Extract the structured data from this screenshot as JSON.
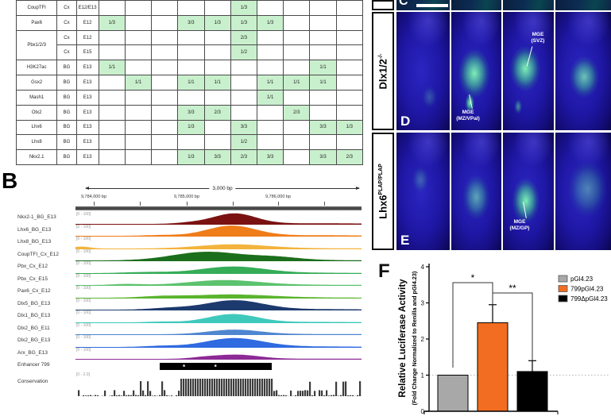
{
  "labels": {
    "b": "B",
    "f": "F"
  },
  "table": {
    "highlight_color": "#c9f0cd",
    "num_data_cols": 10,
    "rows": [
      {
        "gene": "CoupTFI",
        "rowspan": 1,
        "region": "Cx",
        "age": "E12/E13",
        "cells": {
          "6": "1/3"
        }
      },
      {
        "gene": "Pax6",
        "rowspan": 1,
        "region": "Cx",
        "age": "E12",
        "cells": {
          "1": "1/3",
          "4": "3/3",
          "5": "1/3",
          "6": "1/3",
          "7": "1/3"
        }
      },
      {
        "gene": "Pbx1/2/3",
        "rowspan": 2,
        "region": "Cx",
        "age": "E12",
        "cells": {
          "6": "2/3"
        }
      },
      {
        "gene": null,
        "rowspan": 1,
        "region": "Cx",
        "age": "E15",
        "cells": {
          "6": "1/2"
        }
      },
      {
        "gene": "H3K27ac",
        "rowspan": 1,
        "region": "BG",
        "age": "E13",
        "cells": {
          "1": "1/1",
          "9": "1/1"
        }
      },
      {
        "gene": "Gsx2",
        "rowspan": 1,
        "region": "BG",
        "age": "E13",
        "cells": {
          "2": "1/1",
          "4": "1/1",
          "5": "1/1",
          "7": "1/1",
          "8": "1/1",
          "9": "1/1"
        }
      },
      {
        "gene": "Mash1",
        "rowspan": 1,
        "region": "BG",
        "age": "E13",
        "cells": {
          "7": "1/1"
        }
      },
      {
        "gene": "Otx2",
        "rowspan": 1,
        "region": "BG",
        "age": "E13",
        "cells": {
          "4": "3/3",
          "5": "2/3",
          "8": "2/3"
        }
      },
      {
        "gene": "Lhx6",
        "rowspan": 1,
        "region": "BG",
        "age": "E13",
        "cells": {
          "4": "1/3",
          "6": "3/3",
          "9": "3/3",
          "10": "1/3"
        }
      },
      {
        "gene": "Lhx8",
        "rowspan": 1,
        "region": "BG",
        "age": "E13",
        "cells": {
          "6": "1/2"
        }
      },
      {
        "gene": "Nkx2.1",
        "rowspan": 1,
        "region": "BG",
        "age": "E13",
        "cells": {
          "4": "1/3",
          "5": "3/3",
          "6": "2/3",
          "7": "3/3",
          "9": "3/3",
          "10": "2/3"
        }
      }
    ]
  },
  "panel_b": {
    "ruler": {
      "span_label": "3,000 bp",
      "coords": [
        "9,784,000 bp",
        "9,785,000 bp",
        "9,786,000 bp"
      ]
    },
    "tracks": [
      {
        "name": "Nkx2-1_BG_E13",
        "scale": "[0 - 100]",
        "color": "#7a1212",
        "peak": {
          "c": 0.555,
          "w": 0.075,
          "h": 0.95
        },
        "peak2": {
          "c": 0.4,
          "w": 0.05,
          "h": 0.1
        }
      },
      {
        "name": "Lhx6_BG_E13",
        "scale": "[0 - 100]",
        "color": "#ef7d1a",
        "peak": {
          "c": 0.545,
          "w": 0.085,
          "h": 0.92
        },
        "peak2": {
          "c": 0.3,
          "w": 0.06,
          "h": 0.07
        }
      },
      {
        "name": "Lhx8_BG_E13",
        "scale": "[0 - 100]",
        "color": "#f3b33c",
        "peak": {
          "c": 0.55,
          "w": 0.12,
          "h": 0.38
        },
        "peak2": {
          "c": 0.02,
          "w": 0.03,
          "h": 0.18
        }
      },
      {
        "name": "CoupTFI_Cx_E12",
        "scale": "[0 - 100]",
        "color": "#1b6e1b",
        "peak": {
          "c": 0.46,
          "w": 0.12,
          "h": 0.78
        },
        "peak2": {
          "c": 0.7,
          "w": 0.08,
          "h": 0.25
        }
      },
      {
        "name": "Pbx_Cx_E12",
        "scale": "[0 - 100]",
        "color": "#35ad57",
        "peak": {
          "c": 0.55,
          "w": 0.11,
          "h": 0.6
        },
        "peak2": {
          "c": 0.25,
          "w": 0.08,
          "h": 0.1
        }
      },
      {
        "name": "Pbx_Cx_E15",
        "scale": "[0 - 100]",
        "color": "#5cc26e",
        "peak": {
          "c": 0.52,
          "w": 0.12,
          "h": 0.45
        },
        "peak2": {
          "c": 0.18,
          "w": 0.05,
          "h": 0.1
        }
      },
      {
        "name": "Pax6_Cx_E12",
        "scale": "[0 - 100]",
        "color": "#5ab42d",
        "peak": {
          "c": 0.54,
          "w": 0.14,
          "h": 0.3
        },
        "peak2": {
          "c": 0.3,
          "w": 0.07,
          "h": 0.12
        }
      },
      {
        "name": "Dlx5_BG_E13",
        "scale": "[0 - 100]",
        "color": "#1d3a6e",
        "peak": {
          "c": 0.555,
          "w": 0.1,
          "h": 0.85
        },
        "peak2": {
          "c": 0.33,
          "w": 0.07,
          "h": 0.15
        }
      },
      {
        "name": "Dlx1_BG_E13",
        "scale": "[0 - 100]",
        "color": "#3fc9bc",
        "peak": {
          "c": 0.55,
          "w": 0.085,
          "h": 0.75
        },
        "peak2": {
          "c": 0.3,
          "w": 0.05,
          "h": 0.07
        }
      },
      {
        "name": "Dlx2_BG_E11",
        "scale": "[0 - 100]",
        "color": "#4f86d0",
        "peak": {
          "c": 0.555,
          "w": 0.09,
          "h": 0.42
        }
      },
      {
        "name": "Dlx2_BG_E13",
        "scale": "[0 - 100]",
        "color": "#2f6ae0",
        "peak": {
          "c": 0.555,
          "w": 0.1,
          "h": 0.8
        },
        "peak2": {
          "c": 0.3,
          "w": 0.06,
          "h": 0.1
        }
      },
      {
        "name": "Arx_BG_E13",
        "scale": "[0 - 100]",
        "color": "#8d2a96",
        "peak": {
          "c": 0.565,
          "w": 0.075,
          "h": 0.38
        },
        "peak2": {
          "c": 0.45,
          "w": 0.05,
          "h": 0.12
        }
      }
    ],
    "enhancer": {
      "name": "Enhancer 799",
      "bar_start": 0.295,
      "bar_end": 0.685,
      "asterisk": "*",
      "ast_pos": [
        0.375,
        0.485
      ]
    },
    "conservation": {
      "name": "Conservation",
      "scale": "[0 - 2.0]",
      "color": "#3d3d3d",
      "block_start": 0.36,
      "block_end": 0.685
    }
  },
  "panel_c": {
    "letter": "C"
  },
  "panel_d": {
    "letter": "D",
    "row_label": "Dlx1/2",
    "row_sup": "-/-",
    "ann_svz": [
      "MGE",
      "(SVZ)"
    ],
    "ann_mz": [
      "MGE",
      "(MZ/VPal)"
    ]
  },
  "panel_e": {
    "letter": "E",
    "row_label": "Lhx6",
    "row_sup": "PLAP/PLAP",
    "ann": [
      "MGE",
      "(MZ/GP)"
    ]
  },
  "chart_data": {
    "type": "bar",
    "ylabel": "Relative Luciferase Activity",
    "ylabel_sub": "(Fold Change Normalized to Renilla and pGl4.23)",
    "categories": [
      "pGl4.23",
      "799pGl4.23",
      "799ΔpGl4.23"
    ],
    "values": [
      1.0,
      2.45,
      1.1
    ],
    "errors": [
      0,
      0.5,
      0.3
    ],
    "colors": [
      "#a8a8a8",
      "#f26d21",
      "#000000"
    ],
    "ylim": [
      0,
      4
    ],
    "yticks": [
      0,
      1,
      2,
      3,
      4
    ],
    "baseline": 1,
    "grid": "dotted line at y=1",
    "legend_position": "upper right",
    "legend": [
      "pGl4.23",
      "799pGl4.23",
      "799ΔpGl4.23"
    ],
    "significance": [
      {
        "between": [
          0,
          1
        ],
        "label": "*"
      },
      {
        "between": [
          1,
          2
        ],
        "label": "**"
      }
    ]
  }
}
